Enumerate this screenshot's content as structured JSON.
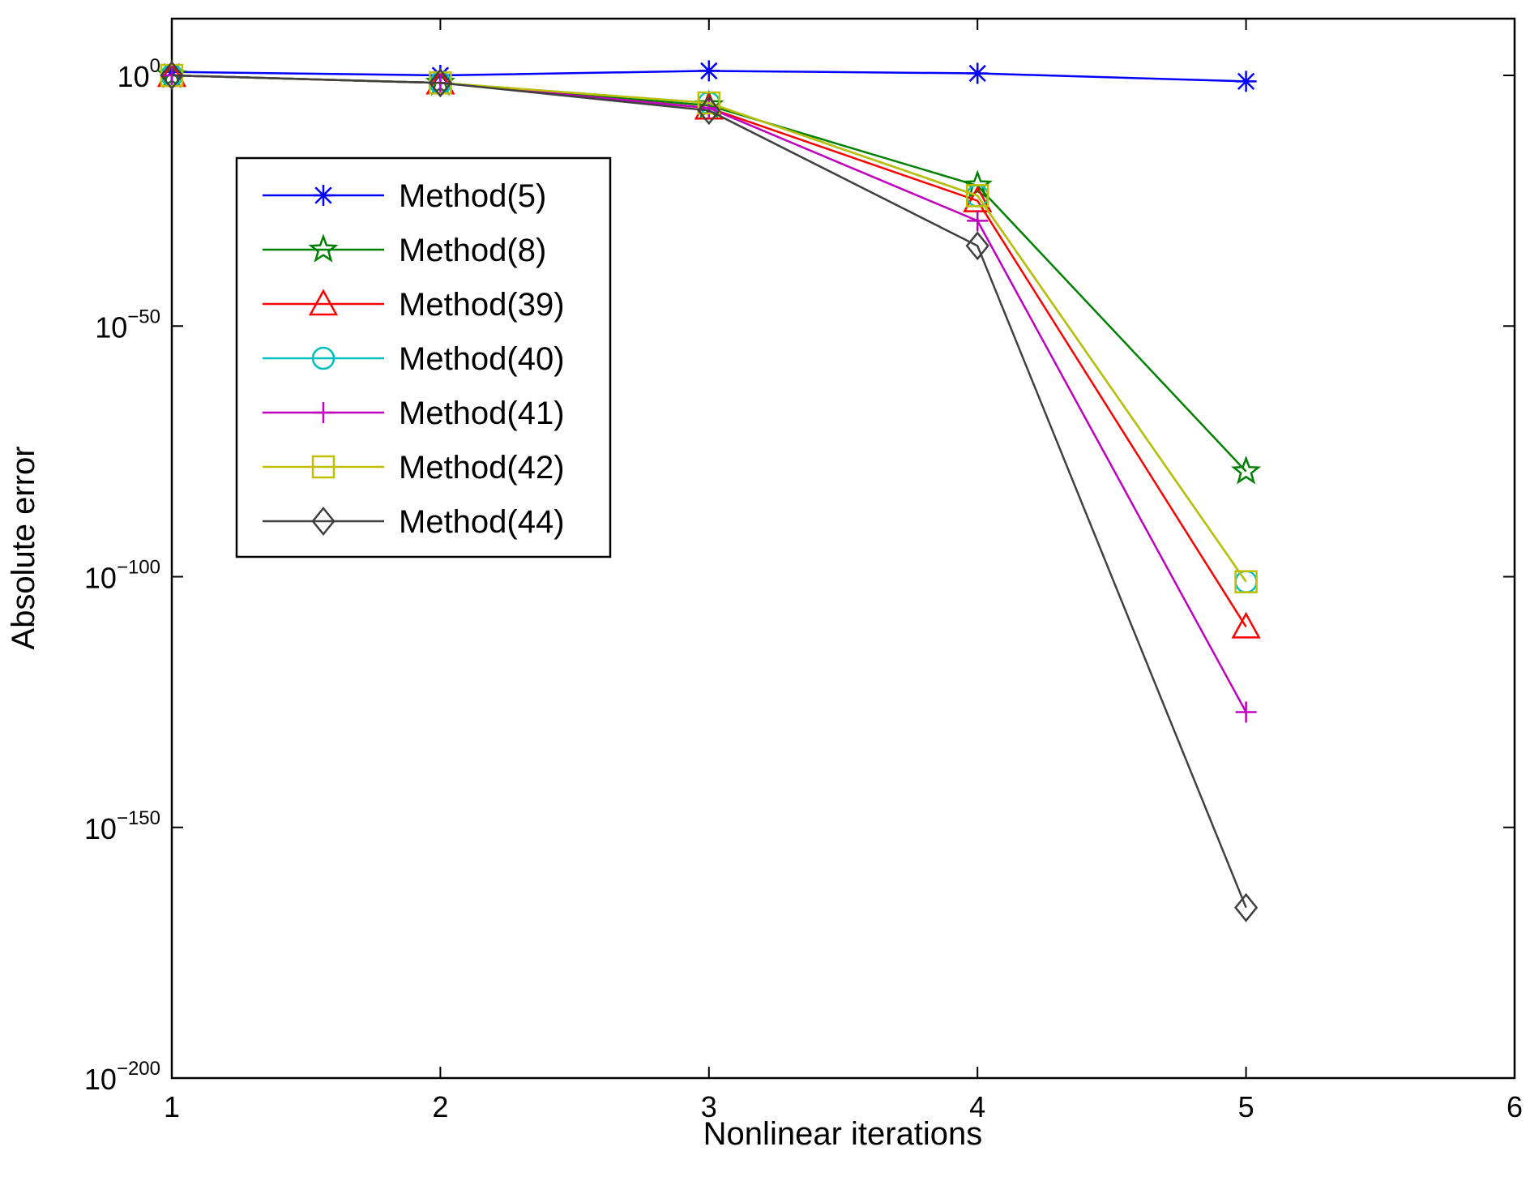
{
  "chart_data": {
    "type": "line",
    "title": "",
    "xlabel": "Nonlinear iterations",
    "ylabel": "Absolute error",
    "yscale": "log",
    "xlim": [
      1,
      6
    ],
    "ylim_exponent": [
      -200,
      10
    ],
    "x_ticks": [
      "1",
      "2",
      "3",
      "4",
      "5",
      "6"
    ],
    "y_ticks": [
      {
        "base": "10",
        "exp": "0",
        "value": 0
      },
      {
        "base": "10",
        "exp": "−50",
        "value": -50
      },
      {
        "base": "10",
        "exp": "−100",
        "value": -100
      },
      {
        "base": "10",
        "exp": "−150",
        "value": -150
      },
      {
        "base": "10",
        "exp": "−200",
        "value": -200
      }
    ],
    "grid": false,
    "legend_position": "top-left",
    "x": [
      1,
      2,
      3,
      4,
      5
    ],
    "series": [
      {
        "name": "Method(5)",
        "color": "#0000ff",
        "marker": "asterisk",
        "log10_values": [
          0.7,
          0,
          0.9,
          0.4,
          -1.2
        ]
      },
      {
        "name": "Method(8)",
        "color": "#008000",
        "marker": "star",
        "log10_values": [
          0,
          -1.5,
          -6,
          -22,
          -79
        ]
      },
      {
        "name": "Method(39)",
        "color": "#ff0000",
        "marker": "triangle",
        "log10_values": [
          0,
          -1.5,
          -6.5,
          -25,
          -110
        ]
      },
      {
        "name": "Method(40)",
        "color": "#00bfbf",
        "marker": "circle",
        "log10_values": [
          0,
          -1.5,
          -5.5,
          -24,
          -101
        ]
      },
      {
        "name": "Method(41)",
        "color": "#bf00bf",
        "marker": "plus",
        "log10_values": [
          0,
          -1.5,
          -6.5,
          -29,
          -127
        ]
      },
      {
        "name": "Method(42)",
        "color": "#bfbf00",
        "marker": "square",
        "log10_values": [
          0,
          -1.5,
          -5.5,
          -24,
          -101
        ]
      },
      {
        "name": "Method(44)",
        "color": "#404040",
        "marker": "diamond",
        "log10_values": [
          0,
          -1.5,
          -7,
          -34,
          -166
        ]
      }
    ]
  }
}
